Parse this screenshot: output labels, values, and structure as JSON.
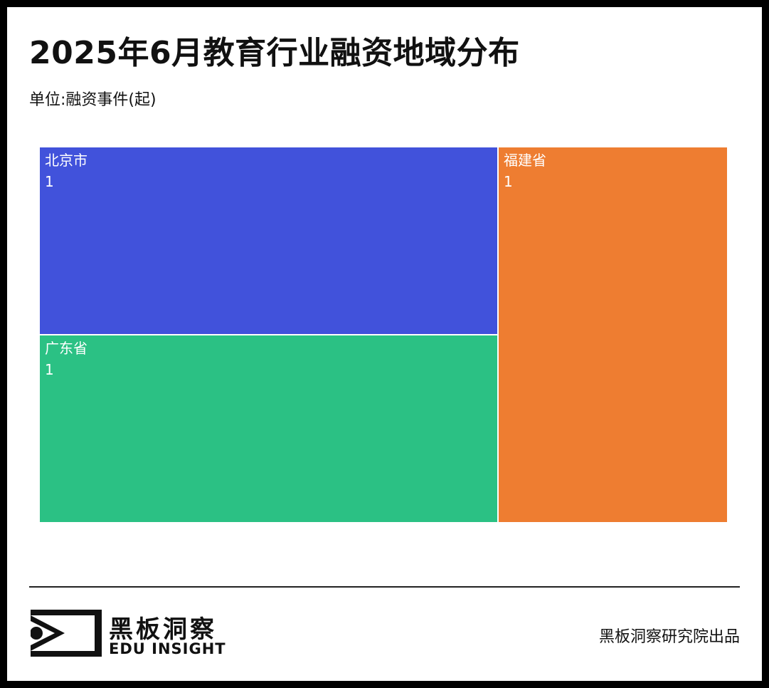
{
  "header": {
    "title": "2025年6月教育行业融资地域分布",
    "subtitle": "单位:融资事件(起)"
  },
  "chart_data": {
    "type": "treemap",
    "title": "2025年6月教育行业融资地域分布",
    "unit": "单位:融资事件(起)",
    "items": [
      {
        "name": "北京市",
        "value": 1,
        "color": "#4152db"
      },
      {
        "name": "广东省",
        "value": 1,
        "color": "#2bc184"
      },
      {
        "name": "福建省",
        "value": 1,
        "color": "#ee7d31"
      }
    ]
  },
  "footer": {
    "brand_name": "黑板洞察",
    "brand_en": "EDU INSIGHT",
    "credit": "黑板洞察研究院出品"
  }
}
